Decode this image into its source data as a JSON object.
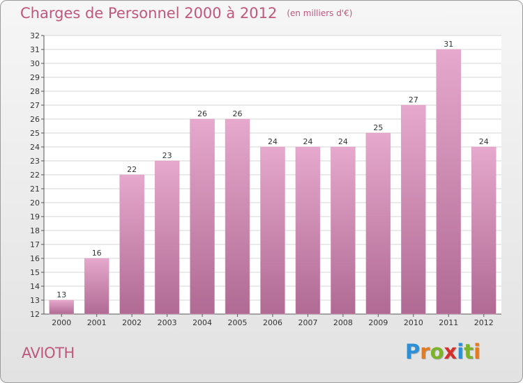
{
  "header": {
    "title": "Charges de Personnel 2000 à 2012",
    "subtitle": "(en milliers d'€)"
  },
  "footer": {
    "commune": "AVIOTH",
    "logo": {
      "letters": [
        "P",
        "r",
        "o",
        "x",
        "i",
        "t",
        "i"
      ],
      "colors": [
        "#2d8fd6",
        "#e87a1e",
        "#7cb32a",
        "#d6302d",
        "#2d8fd6",
        "#7cb32a",
        "#e87a1e"
      ]
    }
  },
  "colors": {
    "bar_top": "#e6a8cd",
    "bar_bottom": "#b06a93",
    "title": "#c0577c",
    "plot_bg": "#ffffff",
    "grid": "#d4d4d4"
  },
  "chart_data": {
    "type": "bar",
    "categories": [
      "2000",
      "2001",
      "2002",
      "2003",
      "2004",
      "2005",
      "2006",
      "2007",
      "2008",
      "2009",
      "2010",
      "2011",
      "2012"
    ],
    "values": [
      13,
      16,
      22,
      23,
      26,
      26,
      24,
      24,
      24,
      25,
      27,
      31,
      24
    ],
    "data_labels": [
      "13",
      "16",
      "22",
      "23",
      "26",
      "26",
      "24",
      "24",
      "24",
      "25",
      "27",
      "31",
      "24"
    ],
    "yticks": [
      "12",
      "13",
      "14",
      "15",
      "16",
      "17",
      "18",
      "19",
      "20",
      "21",
      "22",
      "23",
      "24",
      "25",
      "26",
      "27",
      "28",
      "29",
      "30",
      "31",
      "32"
    ],
    "ylim": [
      12,
      32
    ],
    "grid": true,
    "legend": "none"
  }
}
